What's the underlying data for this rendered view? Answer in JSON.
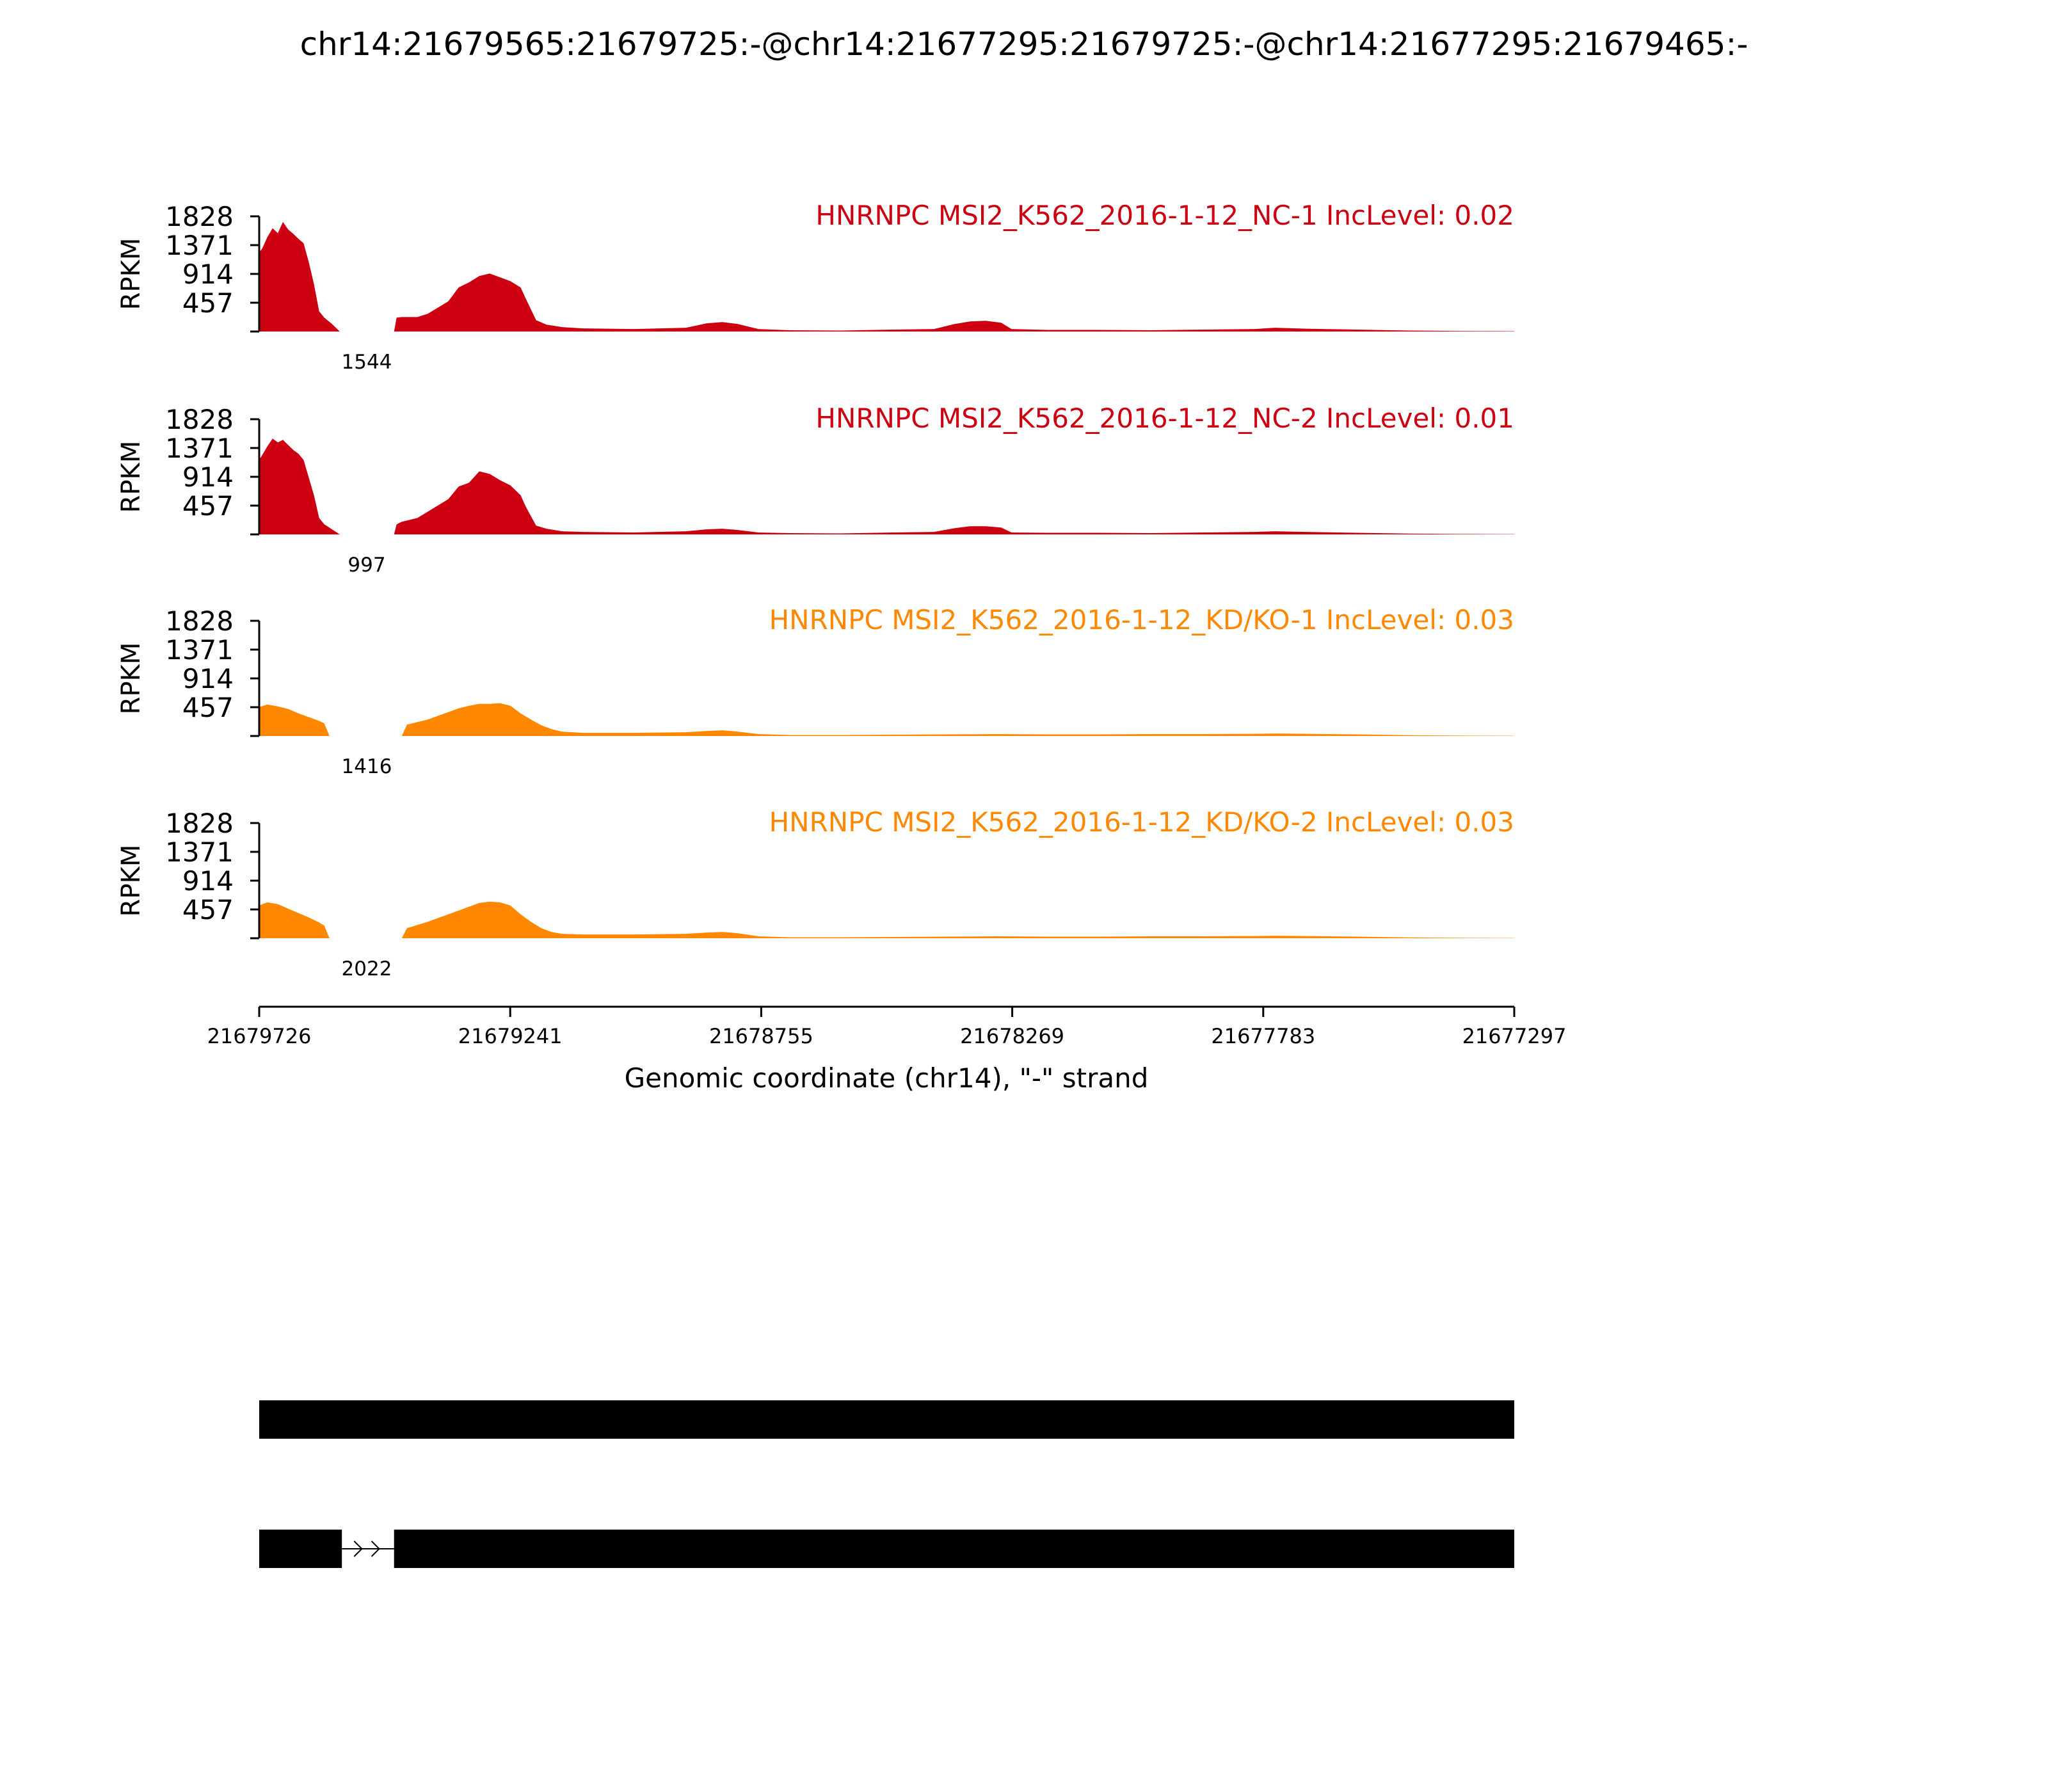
{
  "title": "chr14:21679565:21679725:-@chr14:21677295:21679725:-@chr14:21677295:21679465:-",
  "chart_data": [
    {
      "type": "area",
      "name": "HNRNPC MSI2_K562_2016-1-12_NC-1 IncLevel: 0.02",
      "color": "#cc0011",
      "ylabel": "RPKM",
      "yticks": [
        457,
        914,
        1371,
        1828
      ],
      "ylim": [
        0,
        1828
      ],
      "xlim": [
        21679726,
        21677297
      ],
      "junction_label": "1544",
      "values": [
        [
          21679726,
          1250
        ],
        [
          21679720,
          1320
        ],
        [
          21679710,
          1500
        ],
        [
          21679700,
          1640
        ],
        [
          21679690,
          1560
        ],
        [
          21679680,
          1740
        ],
        [
          21679670,
          1620
        ],
        [
          21679660,
          1550
        ],
        [
          21679650,
          1470
        ],
        [
          21679640,
          1400
        ],
        [
          21679630,
          1100
        ],
        [
          21679620,
          750
        ],
        [
          21679610,
          320
        ],
        [
          21679600,
          220
        ],
        [
          21679585,
          120
        ],
        [
          21679570,
          0
        ],
        [
          21679465,
          0
        ],
        [
          21679460,
          220
        ],
        [
          21679450,
          230
        ],
        [
          21679420,
          230
        ],
        [
          21679400,
          280
        ],
        [
          21679380,
          380
        ],
        [
          21679360,
          480
        ],
        [
          21679340,
          700
        ],
        [
          21679320,
          780
        ],
        [
          21679300,
          880
        ],
        [
          21679280,
          920
        ],
        [
          21679260,
          860
        ],
        [
          21679240,
          800
        ],
        [
          21679220,
          700
        ],
        [
          21679210,
          520
        ],
        [
          21679190,
          180
        ],
        [
          21679170,
          110
        ],
        [
          21679140,
          70
        ],
        [
          21679100,
          50
        ],
        [
          21679000,
          40
        ],
        [
          21678900,
          60
        ],
        [
          21678860,
          130
        ],
        [
          21678830,
          150
        ],
        [
          21678800,
          120
        ],
        [
          21678760,
          40
        ],
        [
          21678700,
          20
        ],
        [
          21678600,
          15
        ],
        [
          21678500,
          30
        ],
        [
          21678420,
          40
        ],
        [
          21678380,
          120
        ],
        [
          21678350,
          160
        ],
        [
          21678320,
          170
        ],
        [
          21678290,
          140
        ],
        [
          21678270,
          40
        ],
        [
          21678200,
          25
        ],
        [
          21678100,
          25
        ],
        [
          21678000,
          20
        ],
        [
          21677900,
          30
        ],
        [
          21677800,
          40
        ],
        [
          21677760,
          60
        ],
        [
          21677700,
          45
        ],
        [
          21677600,
          30
        ],
        [
          21677500,
          15
        ],
        [
          21677400,
          8
        ],
        [
          21677297,
          5
        ]
      ]
    },
    {
      "type": "area",
      "name": "HNRNPC MSI2_K562_2016-1-12_NC-2 IncLevel: 0.01",
      "color": "#cc0011",
      "ylabel": "RPKM",
      "yticks": [
        457,
        914,
        1371,
        1828
      ],
      "ylim": [
        0,
        1828
      ],
      "xlim": [
        21679726,
        21677297
      ],
      "junction_label": "997",
      "values": [
        [
          21679726,
          1180
        ],
        [
          21679720,
          1260
        ],
        [
          21679710,
          1400
        ],
        [
          21679700,
          1520
        ],
        [
          21679690,
          1460
        ],
        [
          21679680,
          1500
        ],
        [
          21679670,
          1420
        ],
        [
          21679660,
          1340
        ],
        [
          21679650,
          1280
        ],
        [
          21679640,
          1180
        ],
        [
          21679630,
          900
        ],
        [
          21679620,
          620
        ],
        [
          21679610,
          260
        ],
        [
          21679600,
          160
        ],
        [
          21679585,
          80
        ],
        [
          21679570,
          0
        ],
        [
          21679465,
          0
        ],
        [
          21679460,
          160
        ],
        [
          21679450,
          200
        ],
        [
          21679420,
          260
        ],
        [
          21679400,
          360
        ],
        [
          21679380,
          460
        ],
        [
          21679360,
          560
        ],
        [
          21679340,
          760
        ],
        [
          21679320,
          820
        ],
        [
          21679300,
          1000
        ],
        [
          21679280,
          960
        ],
        [
          21679260,
          860
        ],
        [
          21679240,
          780
        ],
        [
          21679220,
          620
        ],
        [
          21679210,
          440
        ],
        [
          21679190,
          140
        ],
        [
          21679170,
          90
        ],
        [
          21679140,
          50
        ],
        [
          21679100,
          40
        ],
        [
          21679000,
          30
        ],
        [
          21678900,
          50
        ],
        [
          21678860,
          80
        ],
        [
          21678830,
          90
        ],
        [
          21678800,
          70
        ],
        [
          21678760,
          30
        ],
        [
          21678700,
          20
        ],
        [
          21678600,
          15
        ],
        [
          21678500,
          30
        ],
        [
          21678420,
          40
        ],
        [
          21678380,
          100
        ],
        [
          21678350,
          130
        ],
        [
          21678320,
          130
        ],
        [
          21678290,
          110
        ],
        [
          21678270,
          30
        ],
        [
          21678200,
          25
        ],
        [
          21678100,
          25
        ],
        [
          21678000,
          20
        ],
        [
          21677900,
          30
        ],
        [
          21677800,
          40
        ],
        [
          21677760,
          50
        ],
        [
          21677700,
          40
        ],
        [
          21677600,
          25
        ],
        [
          21677500,
          12
        ],
        [
          21677400,
          6
        ],
        [
          21677297,
          4
        ]
      ]
    },
    {
      "type": "area",
      "name": "HNRNPC MSI2_K562_2016-1-12_KD/KO-1 IncLevel: 0.03",
      "color": "#ff8800",
      "ylabel": "RPKM",
      "yticks": [
        457,
        914,
        1371,
        1828
      ],
      "ylim": [
        0,
        1828
      ],
      "xlim": [
        21679726,
        21677297
      ],
      "junction_label": "1416",
      "values": [
        [
          21679726,
          460
        ],
        [
          21679710,
          500
        ],
        [
          21679690,
          470
        ],
        [
          21679670,
          430
        ],
        [
          21679650,
          360
        ],
        [
          21679630,
          300
        ],
        [
          21679610,
          240
        ],
        [
          21679600,
          200
        ],
        [
          21679590,
          0
        ],
        [
          21679450,
          0
        ],
        [
          21679440,
          180
        ],
        [
          21679420,
          220
        ],
        [
          21679400,
          260
        ],
        [
          21679380,
          320
        ],
        [
          21679360,
          380
        ],
        [
          21679340,
          440
        ],
        [
          21679320,
          480
        ],
        [
          21679300,
          510
        ],
        [
          21679280,
          510
        ],
        [
          21679260,
          520
        ],
        [
          21679240,
          480
        ],
        [
          21679220,
          360
        ],
        [
          21679200,
          260
        ],
        [
          21679180,
          170
        ],
        [
          21679160,
          110
        ],
        [
          21679140,
          70
        ],
        [
          21679100,
          50
        ],
        [
          21679000,
          50
        ],
        [
          21678900,
          60
        ],
        [
          21678860,
          80
        ],
        [
          21678830,
          90
        ],
        [
          21678800,
          70
        ],
        [
          21678760,
          30
        ],
        [
          21678700,
          15
        ],
        [
          21678600,
          15
        ],
        [
          21678500,
          20
        ],
        [
          21678400,
          25
        ],
        [
          21678300,
          30
        ],
        [
          21678200,
          25
        ],
        [
          21678100,
          25
        ],
        [
          21678000,
          30
        ],
        [
          21677900,
          30
        ],
        [
          21677800,
          35
        ],
        [
          21677760,
          40
        ],
        [
          21677700,
          35
        ],
        [
          21677600,
          25
        ],
        [
          21677500,
          12
        ],
        [
          21677400,
          6
        ],
        [
          21677297,
          4
        ]
      ]
    },
    {
      "type": "area",
      "name": "HNRNPC MSI2_K562_2016-1-12_KD/KO-2 IncLevel: 0.03",
      "color": "#ff8800",
      "ylabel": "RPKM",
      "yticks": [
        457,
        914,
        1371,
        1828
      ],
      "ylim": [
        0,
        1828
      ],
      "xlim": [
        21679726,
        21677297
      ],
      "junction_label": "2022",
      "values": [
        [
          21679726,
          520
        ],
        [
          21679710,
          570
        ],
        [
          21679690,
          540
        ],
        [
          21679670,
          470
        ],
        [
          21679650,
          400
        ],
        [
          21679630,
          330
        ],
        [
          21679610,
          250
        ],
        [
          21679600,
          200
        ],
        [
          21679590,
          0
        ],
        [
          21679450,
          0
        ],
        [
          21679440,
          160
        ],
        [
          21679420,
          210
        ],
        [
          21679400,
          260
        ],
        [
          21679380,
          320
        ],
        [
          21679360,
          380
        ],
        [
          21679340,
          440
        ],
        [
          21679320,
          500
        ],
        [
          21679300,
          560
        ],
        [
          21679280,
          580
        ],
        [
          21679260,
          570
        ],
        [
          21679240,
          520
        ],
        [
          21679220,
          380
        ],
        [
          21679200,
          260
        ],
        [
          21679180,
          160
        ],
        [
          21679160,
          100
        ],
        [
          21679140,
          70
        ],
        [
          21679100,
          60
        ],
        [
          21679000,
          60
        ],
        [
          21678900,
          70
        ],
        [
          21678860,
          90
        ],
        [
          21678830,
          100
        ],
        [
          21678800,
          80
        ],
        [
          21678760,
          30
        ],
        [
          21678700,
          15
        ],
        [
          21678600,
          15
        ],
        [
          21678500,
          20
        ],
        [
          21678400,
          25
        ],
        [
          21678300,
          30
        ],
        [
          21678200,
          25
        ],
        [
          21678100,
          25
        ],
        [
          21678000,
          30
        ],
        [
          21677900,
          30
        ],
        [
          21677800,
          35
        ],
        [
          21677760,
          40
        ],
        [
          21677700,
          35
        ],
        [
          21677600,
          25
        ],
        [
          21677500,
          12
        ],
        [
          21677400,
          6
        ],
        [
          21677297,
          4
        ]
      ]
    }
  ],
  "xaxis": {
    "ticks": [
      "21679726",
      "21679241",
      "21678755",
      "21678269",
      "21677783",
      "21677297"
    ],
    "label": "Genomic coordinate (chr14), \"-\" strand"
  },
  "isoforms": [
    {
      "exons": [
        [
          21679726,
          21677297
        ]
      ]
    },
    {
      "exons": [
        [
          21679726,
          21679566
        ],
        [
          21679465,
          21677297
        ]
      ]
    }
  ]
}
